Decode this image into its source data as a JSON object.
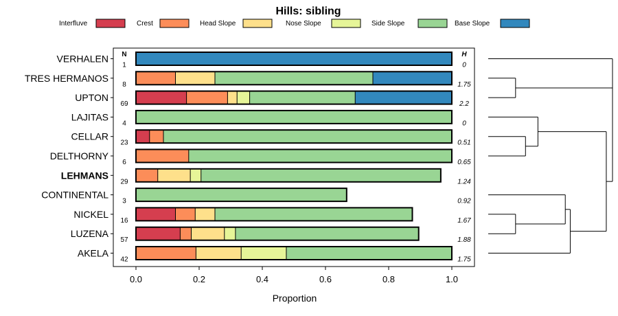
{
  "chart_data": {
    "type": "bar",
    "subtype": "stacked-horizontal-proportion",
    "title": "Hills: sibling",
    "xlabel": "Proportion",
    "ylabel": "",
    "xlim": [
      0,
      1
    ],
    "x_ticks": [
      "0.0",
      "0.2",
      "0.4",
      "0.6",
      "0.8",
      "1.0"
    ],
    "n_header": "N",
    "h_header": "H",
    "legend": {
      "position": "top",
      "entries": [
        {
          "label": "Interfluve",
          "color": "#D53E4F"
        },
        {
          "label": "Crest",
          "color": "#FC8D59"
        },
        {
          "label": "Head Slope",
          "color": "#FEE08B"
        },
        {
          "label": "Nose Slope",
          "color": "#E6F598"
        },
        {
          "label": "Side Slope",
          "color": "#99D594"
        },
        {
          "label": "Base Slope",
          "color": "#3288BD"
        }
      ]
    },
    "categories": [
      "VERHALEN",
      "TRES HERMANOS",
      "UPTON",
      "LAJITAS",
      "CELLAR",
      "DELTHORNY",
      "LEHMANS",
      "CONTINENTAL",
      "NICKEL",
      "LUZENA",
      "AKELA"
    ],
    "highlight": "LEHMANS",
    "n": [
      "1",
      "8",
      "69",
      "4",
      "23",
      "6",
      "29",
      "3",
      "16",
      "57",
      "42"
    ],
    "h": [
      "0",
      "1.75",
      "2.2",
      "0",
      "0.51",
      "0.65",
      "1.24",
      "0.92",
      "1.67",
      "1.88",
      "1.75"
    ],
    "series": [
      {
        "name": "Interfluve",
        "values": [
          0,
          0,
          0.16,
          0,
          0.043,
          0,
          0,
          0,
          0.125,
          0.14,
          0
        ]
      },
      {
        "name": "Crest",
        "values": [
          0,
          0.125,
          0.13,
          0,
          0.044,
          0.167,
          0.069,
          0,
          0.0625,
          0.035,
          0.19
        ]
      },
      {
        "name": "Head Slope",
        "values": [
          0,
          0.125,
          0.03,
          0,
          0,
          0,
          0.103,
          0,
          0.0625,
          0.105,
          0.143
        ]
      },
      {
        "name": "Nose Slope",
        "values": [
          0,
          0,
          0.04,
          0,
          0,
          0,
          0.034,
          0,
          0,
          0.035,
          0.143
        ]
      },
      {
        "name": "Side Slope",
        "values": [
          0,
          0.5,
          0.334,
          1,
          0.913,
          0.833,
          0.759,
          0.667,
          0.625,
          0.58,
          0.524
        ]
      },
      {
        "name": "Base Slope",
        "values": [
          1,
          0.25,
          0.306,
          0,
          0,
          0,
          0,
          0,
          0,
          0,
          0
        ]
      }
    ],
    "dendrogram": {
      "description": "hierarchical clustering of series",
      "merges": [
        [
          1,
          2,
          0.22
        ],
        [
          4,
          5,
          0.3
        ],
        [
          3,
          "m1",
          0.4
        ],
        [
          8,
          9,
          0.22
        ],
        [
          7,
          "m3",
          0.62
        ],
        [
          10,
          "m4",
          0.66
        ],
        [
          "m2",
          "m5",
          0.95
        ],
        [
          0,
          "m0",
          1.0
        ],
        [
          "m7",
          "m6",
          1.0
        ]
      ]
    }
  }
}
